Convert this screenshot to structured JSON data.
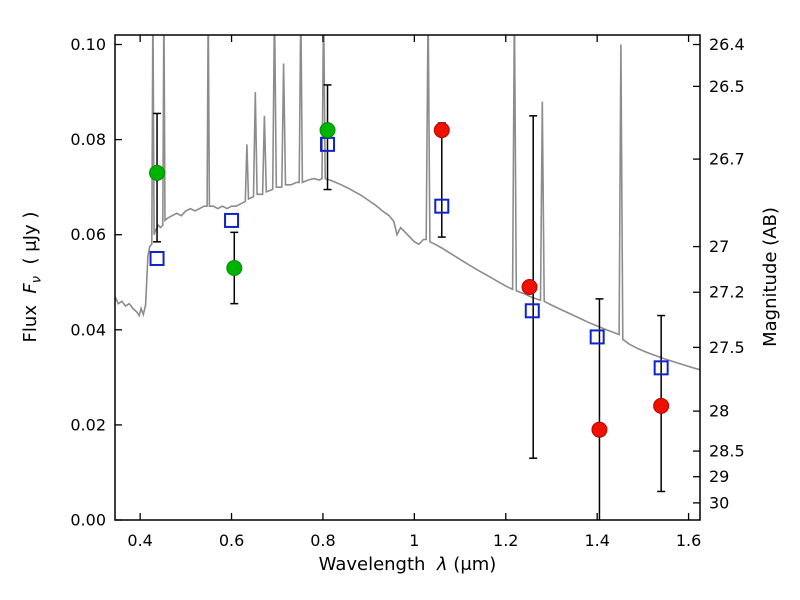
{
  "chart_data": {
    "type": "line+scatter",
    "title": "",
    "xlabel": {
      "prefix": "Wavelength",
      "symbol": "λ",
      "unit": "(μm)"
    },
    "ylabel_left": {
      "prefix": "Flux",
      "symbol": "F",
      "sub": "ν",
      "unit": "( μJy )"
    },
    "ylabel_right": "Magnitude (AB)",
    "xlim": [
      0.345,
      1.625
    ],
    "ylim": [
      0,
      0.102
    ],
    "grid": false,
    "legend": "none",
    "frame_color": "#000000",
    "x_ticks": [
      {
        "v": 0.4,
        "label": "0.4"
      },
      {
        "v": 0.6,
        "label": "0.6"
      },
      {
        "v": 0.8,
        "label": "0.8"
      },
      {
        "v": 1.0,
        "label": "1"
      },
      {
        "v": 1.2,
        "label": "1.2"
      },
      {
        "v": 1.4,
        "label": "1.4"
      },
      {
        "v": 1.6,
        "label": "1.6"
      }
    ],
    "y_ticks_left": [
      {
        "v": 0.0,
        "label": "0.00"
      },
      {
        "v": 0.02,
        "label": "0.02"
      },
      {
        "v": 0.04,
        "label": "0.04"
      },
      {
        "v": 0.06,
        "label": "0.06"
      },
      {
        "v": 0.08,
        "label": "0.08"
      },
      {
        "v": 0.1,
        "label": "0.10"
      }
    ],
    "y_ticks_right": [
      {
        "flux": 0.1,
        "label": "26.4"
      },
      {
        "flux": 0.0912,
        "label": "26.5"
      },
      {
        "flux": 0.0759,
        "label": "26.7"
      },
      {
        "flux": 0.0575,
        "label": "27"
      },
      {
        "flux": 0.0479,
        "label": "27.2"
      },
      {
        "flux": 0.0363,
        "label": "27.5"
      },
      {
        "flux": 0.0229,
        "label": "28"
      },
      {
        "flux": 0.0145,
        "label": "28.5"
      },
      {
        "flux": 0.0091,
        "label": "29"
      },
      {
        "flux": 0.0036,
        "label": "30"
      }
    ],
    "spectrum": {
      "name": "model-spectrum",
      "color": "#8c8c8c",
      "width": 1.6,
      "points": [
        [
          0.345,
          0.047
        ],
        [
          0.352,
          0.0455
        ],
        [
          0.36,
          0.046
        ],
        [
          0.368,
          0.045
        ],
        [
          0.376,
          0.0455
        ],
        [
          0.384,
          0.0445
        ],
        [
          0.392,
          0.0438
        ],
        [
          0.398,
          0.043
        ],
        [
          0.402,
          0.0445
        ],
        [
          0.407,
          0.0432
        ],
        [
          0.412,
          0.0452
        ],
        [
          0.417,
          0.0555
        ],
        [
          0.421,
          0.0575
        ],
        [
          0.4255,
          0.058
        ],
        [
          0.428,
          0.108
        ],
        [
          0.4305,
          0.06
        ],
        [
          0.434,
          0.061
        ],
        [
          0.44,
          0.062
        ],
        [
          0.4445,
          0.0615
        ],
        [
          0.4495,
          0.062
        ],
        [
          0.452,
          0.108
        ],
        [
          0.4545,
          0.063
        ],
        [
          0.46,
          0.0635
        ],
        [
          0.47,
          0.064
        ],
        [
          0.48,
          0.0645
        ],
        [
          0.49,
          0.064
        ],
        [
          0.5,
          0.065
        ],
        [
          0.51,
          0.0655
        ],
        [
          0.52,
          0.065
        ],
        [
          0.53,
          0.0655
        ],
        [
          0.54,
          0.066
        ],
        [
          0.5465,
          0.066
        ],
        [
          0.549,
          0.108
        ],
        [
          0.5515,
          0.066
        ],
        [
          0.56,
          0.066
        ],
        [
          0.57,
          0.0655
        ],
        [
          0.58,
          0.066
        ],
        [
          0.59,
          0.0655
        ],
        [
          0.6,
          0.066
        ],
        [
          0.61,
          0.066
        ],
        [
          0.62,
          0.0665
        ],
        [
          0.63,
          0.067
        ],
        [
          0.6335,
          0.079
        ],
        [
          0.637,
          0.0675
        ],
        [
          0.648,
          0.068
        ],
        [
          0.652,
          0.09
        ],
        [
          0.656,
          0.0685
        ],
        [
          0.668,
          0.0685
        ],
        [
          0.672,
          0.085
        ],
        [
          0.676,
          0.069
        ],
        [
          0.69,
          0.0695
        ],
        [
          0.694,
          0.108
        ],
        [
          0.698,
          0.07
        ],
        [
          0.71,
          0.07
        ],
        [
          0.714,
          0.096
        ],
        [
          0.718,
          0.0705
        ],
        [
          0.73,
          0.0705
        ],
        [
          0.742,
          0.071
        ],
        [
          0.748,
          0.071
        ],
        [
          0.7515,
          0.108
        ],
        [
          0.755,
          0.071
        ],
        [
          0.768,
          0.0715
        ],
        [
          0.78,
          0.0718
        ],
        [
          0.792,
          0.0715
        ],
        [
          0.798,
          0.0718
        ],
        [
          0.8015,
          0.108
        ],
        [
          0.805,
          0.0718
        ],
        [
          0.815,
          0.0715
        ],
        [
          0.828,
          0.071
        ],
        [
          0.84,
          0.0705
        ],
        [
          0.855,
          0.0698
        ],
        [
          0.87,
          0.069
        ],
        [
          0.885,
          0.0682
        ],
        [
          0.9,
          0.0672
        ],
        [
          0.915,
          0.0662
        ],
        [
          0.93,
          0.065
        ],
        [
          0.945,
          0.064
        ],
        [
          0.955,
          0.0628
        ],
        [
          0.962,
          0.06
        ],
        [
          0.97,
          0.0615
        ],
        [
          0.98,
          0.0605
        ],
        [
          0.99,
          0.0595
        ],
        [
          1.0,
          0.0585
        ],
        [
          1.01,
          0.058
        ],
        [
          1.02,
          0.059
        ],
        [
          1.026,
          0.059
        ],
        [
          1.03,
          0.108
        ],
        [
          1.034,
          0.0585
        ],
        [
          1.045,
          0.058
        ],
        [
          1.06,
          0.0572
        ],
        [
          1.08,
          0.056
        ],
        [
          1.1,
          0.0548
        ],
        [
          1.12,
          0.0536
        ],
        [
          1.14,
          0.0525
        ],
        [
          1.16,
          0.0514
        ],
        [
          1.18,
          0.0503
        ],
        [
          1.2,
          0.0492
        ],
        [
          1.215,
          0.0485
        ],
        [
          1.219,
          0.108
        ],
        [
          1.223,
          0.0482
        ],
        [
          1.24,
          0.0476
        ],
        [
          1.258,
          0.0468
        ],
        [
          1.276,
          0.0462
        ],
        [
          1.28,
          0.088
        ],
        [
          1.284,
          0.046
        ],
        [
          1.3,
          0.0452
        ],
        [
          1.32,
          0.0443
        ],
        [
          1.34,
          0.0434
        ],
        [
          1.36,
          0.0425
        ],
        [
          1.38,
          0.0416
        ],
        [
          1.4,
          0.0408
        ],
        [
          1.42,
          0.04
        ],
        [
          1.44,
          0.0393
        ],
        [
          1.448,
          0.039
        ],
        [
          1.452,
          0.1
        ],
        [
          1.456,
          0.038
        ],
        [
          1.47,
          0.037
        ],
        [
          1.49,
          0.036
        ],
        [
          1.51,
          0.0352
        ],
        [
          1.53,
          0.0345
        ],
        [
          1.55,
          0.0338
        ],
        [
          1.57,
          0.0332
        ],
        [
          1.59,
          0.0326
        ],
        [
          1.61,
          0.032
        ],
        [
          1.625,
          0.0316
        ]
      ]
    },
    "error_bars": {
      "color": "#000000",
      "width": 1.5,
      "cap": 8,
      "bars": [
        {
          "x": 0.437,
          "low": 0.0585,
          "high": 0.0855
        },
        {
          "x": 0.606,
          "low": 0.0455,
          "high": 0.0605
        },
        {
          "x": 0.81,
          "low": 0.0695,
          "high": 0.0915
        },
        {
          "x": 1.06,
          "low": 0.0595,
          "high": 0.0835
        },
        {
          "x": 1.26,
          "low": 0.013,
          "high": 0.085
        },
        {
          "x": 1.405,
          "low": -0.006,
          "high": 0.0465
        },
        {
          "x": 1.54,
          "low": 0.006,
          "high": 0.043
        }
      ]
    },
    "series": [
      {
        "name": "blue-open-squares",
        "marker": "square",
        "color": "#1022cc",
        "fill": "none",
        "size": 13,
        "points": [
          [
            0.437,
            0.055
          ],
          [
            0.6,
            0.063
          ],
          [
            0.81,
            0.079
          ],
          [
            1.06,
            0.066
          ],
          [
            1.258,
            0.044
          ],
          [
            1.4,
            0.0385
          ],
          [
            1.54,
            0.032
          ]
        ]
      },
      {
        "name": "green-circles",
        "marker": "circle",
        "color": "#00b300",
        "edge": "#008a00",
        "size": 7.5,
        "points": [
          [
            0.437,
            0.073
          ],
          [
            0.606,
            0.053
          ],
          [
            0.81,
            0.082
          ]
        ]
      },
      {
        "name": "red-circles",
        "marker": "circle",
        "color": "#ee1100",
        "edge": "#bb0000",
        "size": 7.5,
        "points": [
          [
            1.06,
            0.082
          ],
          [
            1.252,
            0.049
          ],
          [
            1.405,
            0.019
          ],
          [
            1.54,
            0.024
          ]
        ]
      }
    ]
  }
}
